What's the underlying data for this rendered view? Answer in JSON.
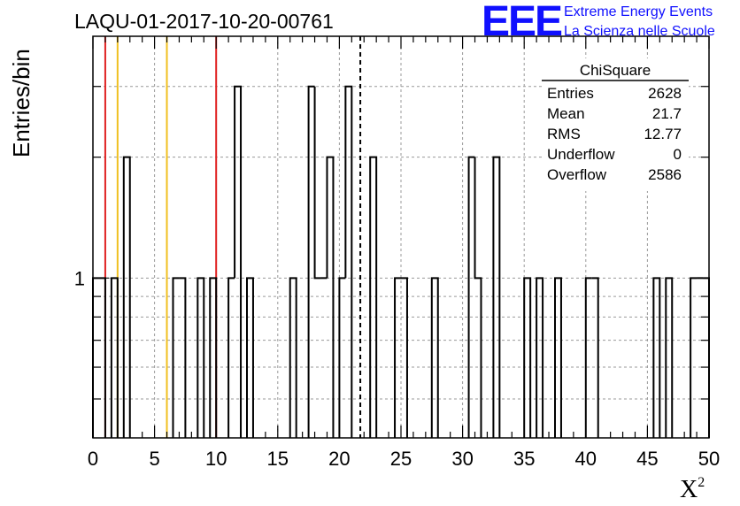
{
  "chart_data": {
    "type": "histogram",
    "title": "LAQU-01-2017-10-20-00761",
    "xlabel": "X",
    "xlabel_superscript": "2",
    "ylabel": "Entries/bin",
    "xlim": [
      0,
      50
    ],
    "ylim": [
      0.4,
      4
    ],
    "y_log_scale": true,
    "grid": true,
    "bin_width": 0.5,
    "x_ticks": [
      "0",
      "5",
      "10",
      "15",
      "20",
      "25",
      "30",
      "35",
      "40",
      "45",
      "50"
    ],
    "y_tick_labels": [
      "1"
    ],
    "bins": [
      {
        "x": 0.0,
        "y": 1
      },
      {
        "x": 0.5,
        "y": 1
      },
      {
        "x": 1.5,
        "y": 1
      },
      {
        "x": 2.5,
        "y": 2
      },
      {
        "x": 6.5,
        "y": 1
      },
      {
        "x": 7.0,
        "y": 1
      },
      {
        "x": 8.5,
        "y": 1
      },
      {
        "x": 9.5,
        "y": 1
      },
      {
        "x": 11.0,
        "y": 1
      },
      {
        "x": 11.5,
        "y": 3
      },
      {
        "x": 12.5,
        "y": 1
      },
      {
        "x": 16.0,
        "y": 1
      },
      {
        "x": 17.5,
        "y": 3
      },
      {
        "x": 18.0,
        "y": 1
      },
      {
        "x": 18.5,
        "y": 1
      },
      {
        "x": 19.0,
        "y": 2
      },
      {
        "x": 20.0,
        "y": 1
      },
      {
        "x": 20.5,
        "y": 3
      },
      {
        "x": 22.5,
        "y": 2
      },
      {
        "x": 24.5,
        "y": 1
      },
      {
        "x": 25.0,
        "y": 1
      },
      {
        "x": 27.5,
        "y": 1
      },
      {
        "x": 30.5,
        "y": 2
      },
      {
        "x": 31.0,
        "y": 1
      },
      {
        "x": 32.5,
        "y": 2
      },
      {
        "x": 35.0,
        "y": 1
      },
      {
        "x": 36.0,
        "y": 1
      },
      {
        "x": 37.5,
        "y": 1
      },
      {
        "x": 40.0,
        "y": 1
      },
      {
        "x": 40.5,
        "y": 1
      },
      {
        "x": 45.5,
        "y": 1
      },
      {
        "x": 46.5,
        "y": 1
      },
      {
        "x": 48.5,
        "y": 1
      },
      {
        "x": 49.0,
        "y": 1
      },
      {
        "x": 49.5,
        "y": 1
      }
    ],
    "vertical_lines": [
      {
        "x": 1.0,
        "color": "#e02020",
        "style": "solid"
      },
      {
        "x": 2.0,
        "color": "#f0c020",
        "style": "solid"
      },
      {
        "x": 6.0,
        "color": "#f0c020",
        "style": "solid"
      },
      {
        "x": 10.0,
        "color": "#e02020",
        "style": "solid"
      },
      {
        "x": 21.7,
        "color": "#000000",
        "style": "dashed"
      }
    ],
    "stats_box": {
      "title": "ChiSquare",
      "rows": [
        {
          "label": "Entries",
          "value": "2628"
        },
        {
          "label": "Mean",
          "value": "21.7"
        },
        {
          "label": "RMS",
          "value": "12.77"
        },
        {
          "label": "Underflow",
          "value": "0"
        },
        {
          "label": "Overflow",
          "value": "2586"
        }
      ]
    }
  },
  "logo": {
    "text": "EEE",
    "line1": "Extreme Energy Events",
    "line2": "La Scienza nelle Scuole",
    "color": "#1010ff"
  }
}
